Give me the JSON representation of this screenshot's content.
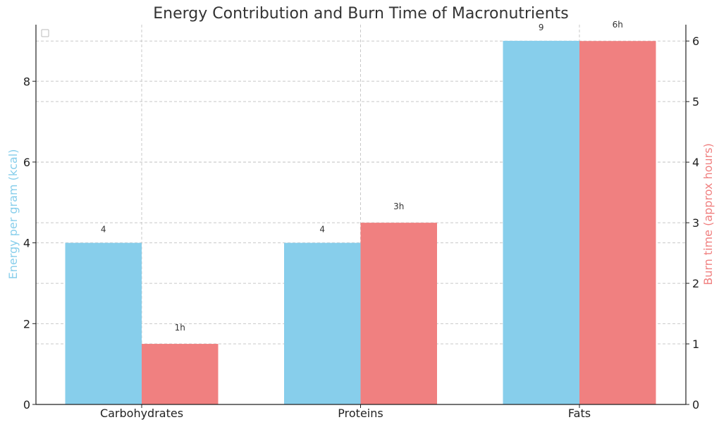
{
  "chart_data": {
    "type": "bar",
    "title": "Energy Contribution and Burn Time of Macronutrients",
    "categories": [
      "Carbohydrates",
      "Proteins",
      "Fats"
    ],
    "left_axis": {
      "label": "Energy per gram (kcal)",
      "ylim": [
        0,
        9.4
      ],
      "ticks": [
        0,
        2,
        4,
        6,
        8
      ],
      "color": "#87CEEB"
    },
    "right_axis": {
      "label": "Burn time (approx hours)",
      "ylim": [
        0,
        6.27
      ],
      "ticks": [
        0,
        1,
        2,
        3,
        4,
        5,
        6
      ],
      "color": "#F08080"
    },
    "series": [
      {
        "name": "Energy per gram (kcal)",
        "axis": "left",
        "color": "#87CEEB",
        "values": [
          4,
          4,
          9
        ],
        "data_labels": [
          "4",
          "4",
          "9"
        ]
      },
      {
        "name": "Burn time (approx hours)",
        "axis": "right",
        "color": "#F08080",
        "values": [
          1,
          3,
          6
        ],
        "data_labels": [
          "1h",
          "3h",
          "6h"
        ]
      }
    ],
    "grid": true,
    "legend": "top-left (empty)"
  }
}
